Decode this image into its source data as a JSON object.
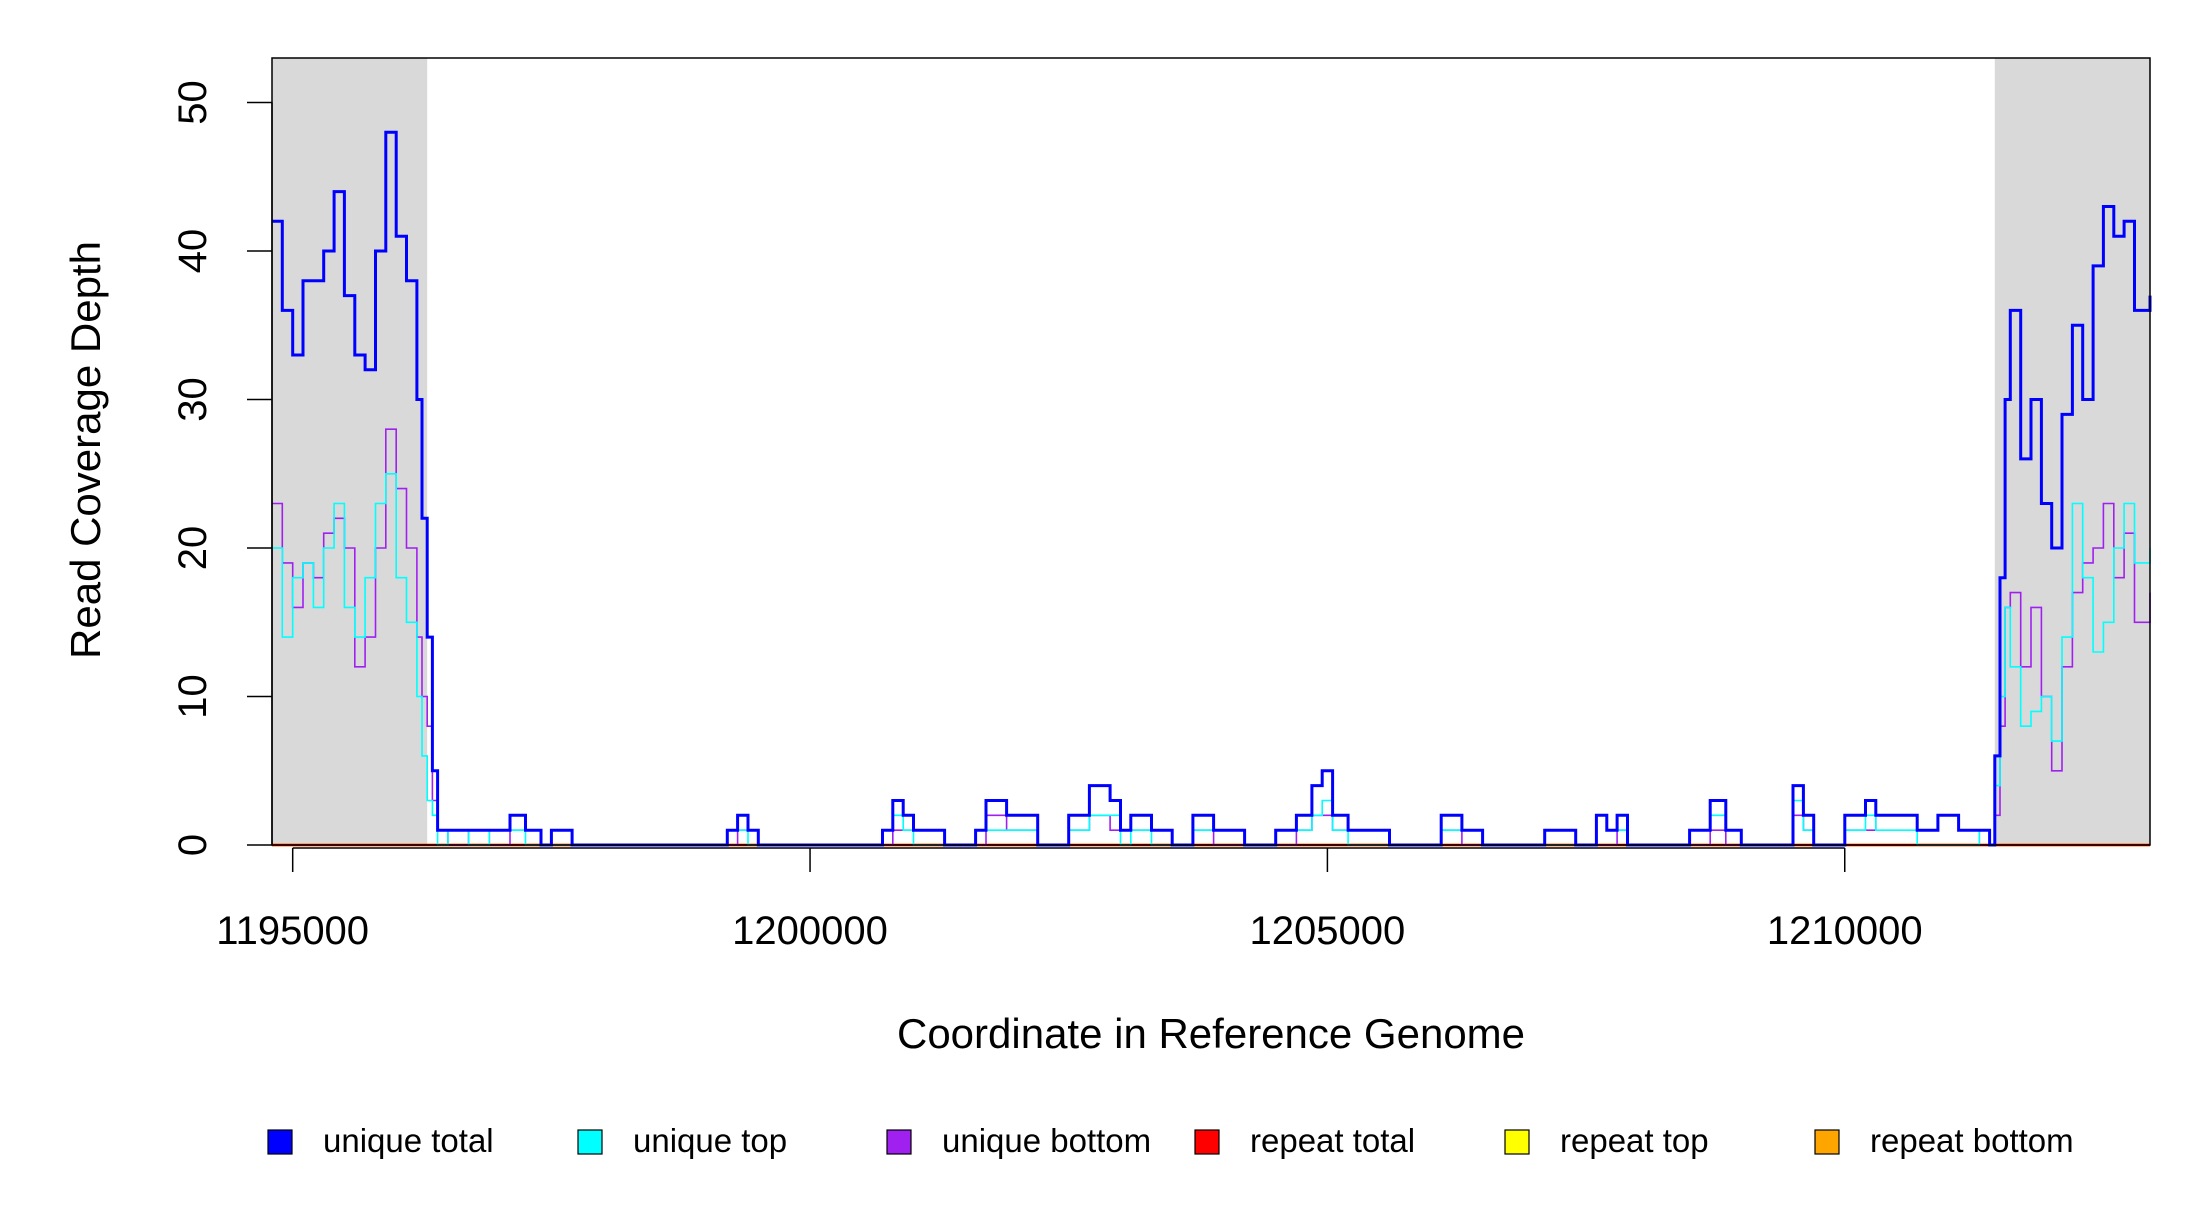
{
  "chart_data": {
    "type": "line",
    "xlabel": "Coordinate in Reference Genome",
    "ylabel": "Read Coverage Depth",
    "xlim": [
      1194800,
      1212950
    ],
    "ylim": [
      0,
      53
    ],
    "x_ticks": [
      1195000,
      1200000,
      1205000,
      1210000
    ],
    "y_ticks": [
      0,
      10,
      20,
      30,
      40,
      50
    ],
    "x_tick_labels": [
      "1195000",
      "1200000",
      "1205000",
      "1210000"
    ],
    "y_tick_labels": [
      "0",
      "10",
      "20",
      "30",
      "40",
      "50"
    ],
    "shaded_regions": [
      [
        1194800,
        1196300
      ],
      [
        1211450,
        1212950
      ]
    ],
    "grid": false,
    "legend_position": "bottom",
    "series": [
      {
        "name": "unique total",
        "color": "#0000ff",
        "x": [
          1194800,
          1194900,
          1195000,
          1195100,
          1195200,
          1195300,
          1195400,
          1195500,
          1195600,
          1195700,
          1195800,
          1195900,
          1196000,
          1196100,
          1196200,
          1196250,
          1196300,
          1196350,
          1196400,
          1196500,
          1196700,
          1196900,
          1197100,
          1197250,
          1197400,
          1197500,
          1197700,
          1198000,
          1199000,
          1199200,
          1199300,
          1199400,
          1199500,
          1200000,
          1200700,
          1200800,
          1200900,
          1201000,
          1201300,
          1201600,
          1201700,
          1201900,
          1202200,
          1202500,
          1202700,
          1202900,
          1203000,
          1203100,
          1203300,
          1203500,
          1203700,
          1203900,
          1204200,
          1204500,
          1204700,
          1204850,
          1204950,
          1205050,
          1205200,
          1205400,
          1205600,
          1205900,
          1206100,
          1206300,
          1206500,
          1206800,
          1207100,
          1207400,
          1207600,
          1207700,
          1207800,
          1207900,
          1208200,
          1208500,
          1208700,
          1208850,
          1209000,
          1209300,
          1209500,
          1209600,
          1209700,
          1210000,
          1210200,
          1210300,
          1210500,
          1210700,
          1210900,
          1211100,
          1211300,
          1211400,
          1211450,
          1211500,
          1211550,
          1211600,
          1211700,
          1211800,
          1211900,
          1212000,
          1212100,
          1212200,
          1212300,
          1212400,
          1212500,
          1212600,
          1212700,
          1212800,
          1212950
        ],
        "y": [
          42,
          36,
          33,
          38,
          38,
          40,
          44,
          37,
          33,
          32,
          40,
          48,
          41,
          38,
          30,
          22,
          14,
          5,
          1,
          1,
          1,
          1,
          2,
          1,
          0,
          1,
          0,
          0,
          0,
          1,
          2,
          1,
          0,
          0,
          1,
          3,
          2,
          1,
          0,
          1,
          3,
          2,
          0,
          2,
          4,
          3,
          1,
          2,
          1,
          0,
          2,
          1,
          0,
          1,
          2,
          4,
          5,
          2,
          1,
          1,
          0,
          0,
          2,
          1,
          0,
          0,
          1,
          0,
          2,
          1,
          2,
          0,
          0,
          1,
          3,
          1,
          0,
          0,
          4,
          2,
          0,
          2,
          3,
          2,
          2,
          1,
          2,
          1,
          1,
          0,
          6,
          18,
          30,
          36,
          26,
          30,
          23,
          20,
          29,
          35,
          30,
          39,
          43,
          41,
          42,
          36,
          37
        ]
      },
      {
        "name": "unique top",
        "color": "#00ffff",
        "x": [
          1194800,
          1194900,
          1195000,
          1195100,
          1195200,
          1195300,
          1195400,
          1195500,
          1195600,
          1195700,
          1195800,
          1195900,
          1196000,
          1196100,
          1196200,
          1196250,
          1196300,
          1196350,
          1196400,
          1196500,
          1196700,
          1196900,
          1197100,
          1197250,
          1197400,
          1197500,
          1197700,
          1198000,
          1199000,
          1199200,
          1199300,
          1199400,
          1199500,
          1200000,
          1200700,
          1200800,
          1200900,
          1201000,
          1201300,
          1201600,
          1201700,
          1201900,
          1202200,
          1202500,
          1202700,
          1202900,
          1203000,
          1203100,
          1203300,
          1203500,
          1203700,
          1203900,
          1204200,
          1204500,
          1204700,
          1204850,
          1204950,
          1205050,
          1205200,
          1205400,
          1205600,
          1205900,
          1206100,
          1206300,
          1206500,
          1206800,
          1207100,
          1207400,
          1207600,
          1207700,
          1207800,
          1207900,
          1208200,
          1208500,
          1208700,
          1208850,
          1209000,
          1209300,
          1209500,
          1209600,
          1209700,
          1210000,
          1210200,
          1210300,
          1210500,
          1210700,
          1210900,
          1211100,
          1211300,
          1211400,
          1211450,
          1211500,
          1211550,
          1211600,
          1211700,
          1211800,
          1211900,
          1212000,
          1212100,
          1212200,
          1212300,
          1212400,
          1212500,
          1212600,
          1212700,
          1212800,
          1212950
        ],
        "y": [
          20,
          14,
          18,
          19,
          16,
          20,
          23,
          16,
          14,
          18,
          23,
          25,
          18,
          15,
          10,
          6,
          3,
          2,
          0,
          1,
          0,
          1,
          1,
          0,
          0,
          0,
          0,
          0,
          0,
          1,
          1,
          0,
          0,
          0,
          1,
          2,
          1,
          0,
          0,
          1,
          1,
          1,
          0,
          1,
          2,
          2,
          0,
          1,
          0,
          0,
          1,
          1,
          0,
          1,
          1,
          2,
          3,
          1,
          0,
          0,
          0,
          0,
          1,
          1,
          0,
          0,
          0,
          0,
          2,
          1,
          1,
          0,
          0,
          1,
          2,
          1,
          0,
          0,
          3,
          1,
          0,
          1,
          2,
          1,
          1,
          0,
          0,
          0,
          1,
          0,
          4,
          10,
          16,
          12,
          8,
          9,
          10,
          7,
          14,
          23,
          18,
          13,
          15,
          20,
          23,
          19,
          20
        ]
      },
      {
        "name": "unique bottom",
        "color": "#a020f0",
        "x": [
          1194800,
          1194900,
          1195000,
          1195100,
          1195200,
          1195300,
          1195400,
          1195500,
          1195600,
          1195700,
          1195800,
          1195900,
          1196000,
          1196100,
          1196200,
          1196250,
          1196300,
          1196350,
          1196400,
          1196500,
          1196700,
          1196900,
          1197100,
          1197250,
          1197400,
          1197500,
          1197700,
          1198000,
          1199000,
          1199200,
          1199300,
          1199400,
          1199500,
          1200000,
          1200700,
          1200800,
          1200900,
          1201000,
          1201300,
          1201600,
          1201700,
          1201900,
          1202200,
          1202500,
          1202700,
          1202900,
          1203000,
          1203100,
          1203300,
          1203500,
          1203700,
          1203900,
          1204200,
          1204500,
          1204700,
          1204850,
          1204950,
          1205050,
          1205200,
          1205400,
          1205600,
          1205900,
          1206100,
          1206300,
          1206500,
          1206800,
          1207100,
          1207400,
          1207600,
          1207700,
          1207800,
          1207900,
          1208200,
          1208500,
          1208700,
          1208850,
          1209000,
          1209300,
          1209500,
          1209600,
          1209700,
          1210000,
          1210200,
          1210300,
          1210500,
          1210700,
          1210900,
          1211100,
          1211300,
          1211400,
          1211450,
          1211500,
          1211550,
          1211600,
          1211700,
          1211800,
          1211900,
          1212000,
          1212100,
          1212200,
          1212300,
          1212400,
          1212500,
          1212600,
          1212700,
          1212800,
          1212950
        ],
        "y": [
          23,
          19,
          16,
          19,
          18,
          21,
          22,
          20,
          12,
          14,
          20,
          28,
          24,
          20,
          14,
          10,
          8,
          3,
          1,
          0,
          1,
          0,
          1,
          1,
          0,
          1,
          0,
          0,
          0,
          0,
          1,
          1,
          0,
          0,
          0,
          1,
          1,
          1,
          0,
          0,
          2,
          1,
          0,
          1,
          2,
          1,
          1,
          1,
          1,
          0,
          1,
          0,
          0,
          0,
          1,
          2,
          2,
          1,
          1,
          1,
          0,
          0,
          1,
          0,
          0,
          0,
          1,
          0,
          0,
          0,
          1,
          0,
          0,
          0,
          1,
          0,
          0,
          0,
          2,
          1,
          0,
          1,
          1,
          2,
          2,
          1,
          2,
          1,
          0,
          0,
          2,
          8,
          16,
          17,
          12,
          16,
          10,
          5,
          12,
          17,
          19,
          20,
          23,
          18,
          21,
          15,
          17
        ]
      },
      {
        "name": "repeat total",
        "color": "#ff0000",
        "x": [
          1194800,
          1212950
        ],
        "y": [
          0,
          0
        ]
      },
      {
        "name": "repeat top",
        "color": "#ffff00",
        "x": [
          1194800,
          1212950
        ],
        "y": [
          0,
          0
        ]
      },
      {
        "name": "repeat bottom",
        "color": "#ffa500",
        "x": [
          1194800,
          1212950
        ],
        "y": [
          0,
          0
        ]
      }
    ]
  }
}
